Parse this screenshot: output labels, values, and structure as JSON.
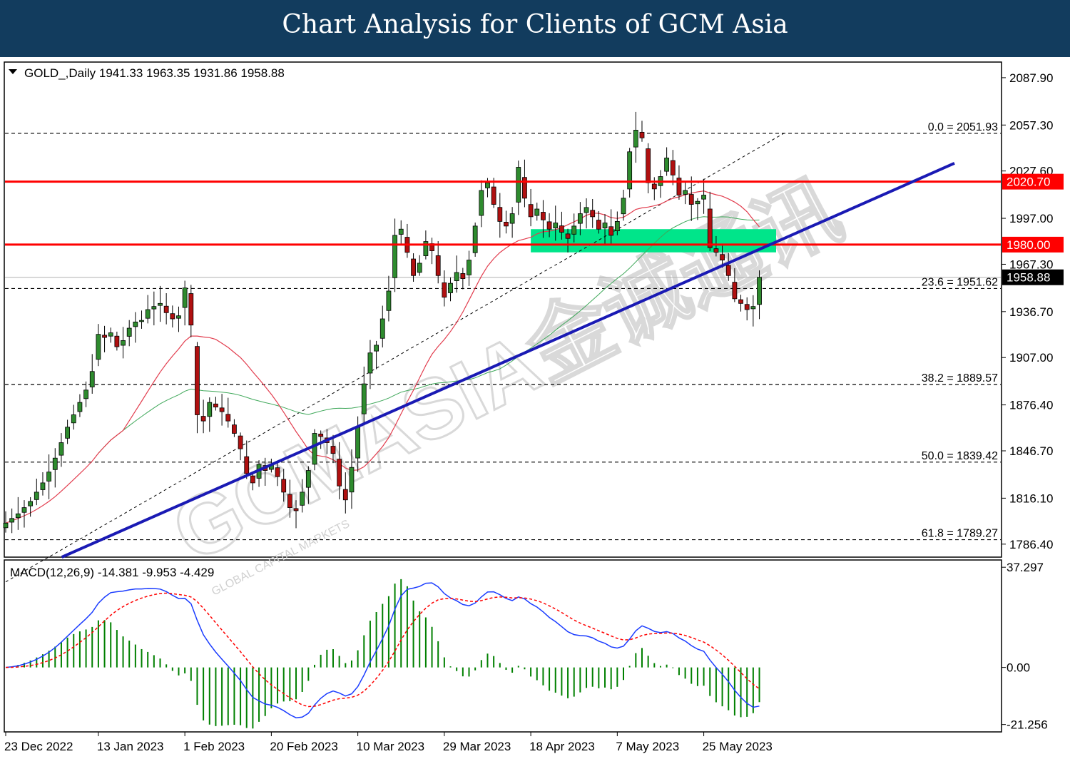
{
  "banner": {
    "title": "Chart Analysis for Clients of GCM Asia"
  },
  "symbol_header": "GOLD_,Daily  1941.33 1963.35 1931.86 1958.88",
  "macd_header": "MACD(12,26,9) -14.381 -9.953 -4.429",
  "watermark": {
    "text": "GCMASIA金诚通讯",
    "subtext": "GLOBAL CAPITAL MARKETS"
  },
  "colors": {
    "banner": "#123c5e",
    "up_candle": "#2e8b2e",
    "down_candle": "#b01010",
    "support_line": "#1a1ab4",
    "resistance": "#ff0000",
    "zone": "#00e58a",
    "ma_fast": "#e23d4e",
    "ma_slow": "#3fa85a",
    "macd_line": "#1a3cff",
    "signal_line": "#ff0000",
    "histogram": "#008000"
  },
  "chart_data": [
    {
      "type": "candlestick",
      "title": "GOLD_,Daily",
      "ohlc_last": {
        "open": 1941.33,
        "high": 1963.35,
        "low": 1931.86,
        "close": 1958.88
      },
      "ylim": [
        1778,
        2098
      ],
      "y_ticks": [
        2087.9,
        2057.3,
        2027.6,
        1997.0,
        1967.3,
        1936.7,
        1907.0,
        1876.4,
        1846.7,
        1816.1,
        1786.4
      ],
      "x_tick_labels": [
        "23 Dec 2022",
        "13 Jan 2023",
        "1 Feb 2023",
        "20 Feb 2023",
        "10 Mar 2023",
        "29 Mar 2023",
        "18 Apr 2023",
        "7 May 2023",
        "25 May 2023"
      ],
      "x_tick_bars": [
        0,
        15,
        29,
        43,
        57,
        71,
        85,
        99,
        113
      ],
      "closes": [
        1800,
        1803,
        1806,
        1810,
        1814,
        1820,
        1826,
        1833,
        1842,
        1852,
        1862,
        1870,
        1878,
        1886,
        1898,
        1922,
        1920,
        1923,
        1914,
        1918,
        1926,
        1930,
        1931,
        1938,
        1940,
        1942,
        1936,
        1932,
        1934,
        1952,
        1928,
        1870,
        1866,
        1878,
        1875,
        1872,
        1866,
        1858,
        1848,
        1832,
        1826,
        1838,
        1834,
        1838,
        1830,
        1820,
        1810,
        1808,
        1820,
        1834,
        1858,
        1856,
        1852,
        1845,
        1824,
        1815,
        1836,
        1862,
        1890,
        1910,
        1915,
        1932,
        1950,
        1986,
        1990,
        1975,
        1960,
        1968,
        1982,
        1976,
        1960,
        1946,
        1955,
        1962,
        1958,
        1970,
        1992,
        2015,
        2020,
        2006,
        1995,
        1992,
        2000,
        2030,
        2010,
        1998,
        2003,
        1996,
        1990,
        1994,
        1988,
        1984,
        1992,
        2000,
        2004,
        1998,
        1990,
        1994,
        1986,
        1995,
        2010,
        2040,
        2054,
        2049,
        2020,
        2016,
        2024,
        2036,
        2025,
        2012,
        2015,
        2006,
        2008,
        2012,
        1978,
        1975,
        1970,
        1960,
        1945,
        1942,
        1938,
        1940,
        1958.88
      ],
      "fib_levels": [
        {
          "label": "0.0 = 2051.93",
          "value": 2051.93
        },
        {
          "label": "23.6 = 1951.62",
          "value": 1951.62
        },
        {
          "label": "38.2 = 1889.57",
          "value": 1889.57
        },
        {
          "label": "50.0 = 1839.42",
          "value": 1839.42
        },
        {
          "label": "61.8 = 1789.27",
          "value": 1789.27
        }
      ],
      "resistance_levels": [
        {
          "label": "2020.70",
          "value": 2020.7
        },
        {
          "label": "1980.00",
          "value": 1980.0
        }
      ],
      "current_price": {
        "label": "1958.88",
        "value": 1958.88
      },
      "zone": {
        "from_bar": 85,
        "to_bar": 166,
        "low": 1975,
        "high": 1990
      },
      "trendline_support": [
        {
          "bar": 0,
          "value": 1762
        },
        {
          "bar": 126,
          "value": 1984
        }
      ],
      "trendline_dashed": [
        {
          "bar": 0,
          "value": 1762
        },
        {
          "bar": 126,
          "value": 2052
        }
      ]
    },
    {
      "type": "macd",
      "title": "MACD(12,26,9)",
      "values": {
        "macd": -14.381,
        "signal": -9.953,
        "histogram": -4.429
      },
      "ylim": [
        -24,
        40
      ],
      "y_ticks": [
        37.297,
        0.0,
        -21.256
      ]
    }
  ]
}
